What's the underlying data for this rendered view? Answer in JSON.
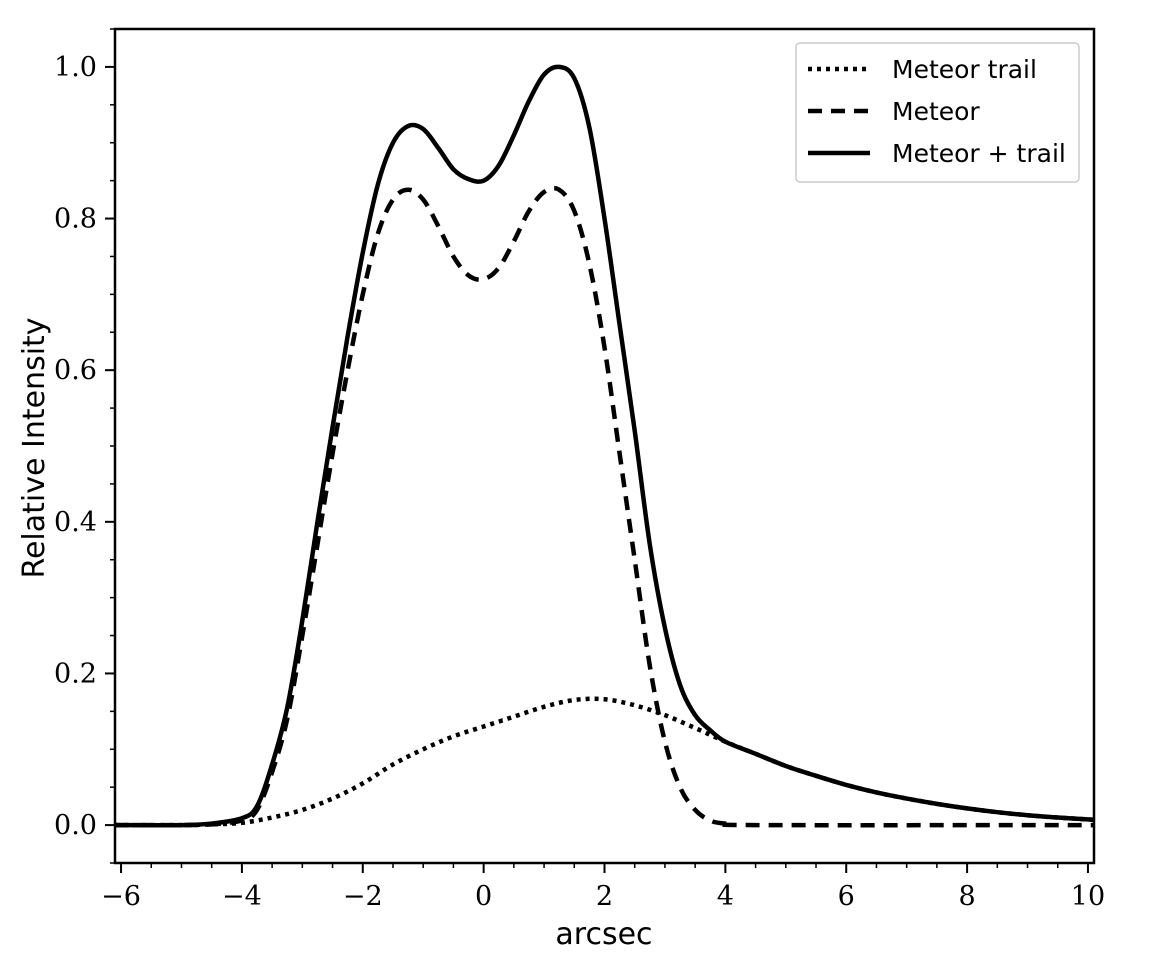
{
  "chart_data": {
    "type": "line",
    "title": "",
    "xlabel": "arcsec",
    "ylabel": "Relative Intensity",
    "xlim": [
      -6.1,
      10.1
    ],
    "ylim": [
      -0.05,
      1.05
    ],
    "x_ticks": [
      -6,
      -4,
      -2,
      0,
      2,
      4,
      6,
      8,
      10
    ],
    "x_tick_labels": [
      "−6",
      "−4",
      "−2",
      "0",
      "2",
      "4",
      "6",
      "8",
      "10"
    ],
    "y_ticks": [
      0.0,
      0.2,
      0.4,
      0.6,
      0.8,
      1.0
    ],
    "y_tick_labels": [
      "0.0",
      "0.2",
      "0.4",
      "0.6",
      "0.8",
      "1.0"
    ],
    "grid": false,
    "legend_position": "top-right",
    "series": [
      {
        "name": "Meteor trail",
        "style": "dotted",
        "color": "#000000",
        "points": [
          [
            -6.1,
            0.0
          ],
          [
            -5,
            0.0
          ],
          [
            -4.5,
            0.001
          ],
          [
            -4,
            0.003
          ],
          [
            -3.5,
            0.01
          ],
          [
            -3,
            0.02
          ],
          [
            -2.5,
            0.035
          ],
          [
            -2,
            0.055
          ],
          [
            -1.5,
            0.08
          ],
          [
            -1,
            0.1
          ],
          [
            -0.5,
            0.117
          ],
          [
            0,
            0.13
          ],
          [
            0.5,
            0.143
          ],
          [
            1,
            0.156
          ],
          [
            1.5,
            0.165
          ],
          [
            2,
            0.166
          ],
          [
            2.5,
            0.158
          ],
          [
            3,
            0.145
          ],
          [
            3.5,
            0.128
          ],
          [
            4,
            0.11
          ],
          [
            4.5,
            0.094
          ],
          [
            5,
            0.078
          ],
          [
            5.5,
            0.065
          ],
          [
            6,
            0.053
          ],
          [
            6.5,
            0.043
          ],
          [
            7,
            0.035
          ],
          [
            7.5,
            0.028
          ],
          [
            8,
            0.022
          ],
          [
            8.5,
            0.017
          ],
          [
            9,
            0.013
          ],
          [
            9.5,
            0.01
          ],
          [
            10.1,
            0.007
          ]
        ]
      },
      {
        "name": "Meteor",
        "style": "dashed",
        "color": "#000000",
        "points": [
          [
            -6.1,
            0.0
          ],
          [
            -5,
            0.0
          ],
          [
            -4.5,
            0.001
          ],
          [
            -4,
            0.006
          ],
          [
            -3.75,
            0.02
          ],
          [
            -3.5,
            0.07
          ],
          [
            -3.25,
            0.14
          ],
          [
            -3,
            0.25
          ],
          [
            -2.75,
            0.37
          ],
          [
            -2.5,
            0.49
          ],
          [
            -2.25,
            0.6
          ],
          [
            -2,
            0.7
          ],
          [
            -1.75,
            0.78
          ],
          [
            -1.5,
            0.825
          ],
          [
            -1.25,
            0.838
          ],
          [
            -1,
            0.825
          ],
          [
            -0.75,
            0.79
          ],
          [
            -0.5,
            0.75
          ],
          [
            -0.25,
            0.725
          ],
          [
            0,
            0.72
          ],
          [
            0.25,
            0.735
          ],
          [
            0.5,
            0.77
          ],
          [
            0.75,
            0.81
          ],
          [
            1,
            0.835
          ],
          [
            1.25,
            0.838
          ],
          [
            1.5,
            0.81
          ],
          [
            1.75,
            0.74
          ],
          [
            2,
            0.63
          ],
          [
            2.25,
            0.49
          ],
          [
            2.5,
            0.35
          ],
          [
            2.75,
            0.21
          ],
          [
            3,
            0.11
          ],
          [
            3.25,
            0.05
          ],
          [
            3.5,
            0.02
          ],
          [
            3.75,
            0.006
          ],
          [
            4,
            0.002
          ],
          [
            4.5,
            0.0
          ],
          [
            10.1,
            0.0
          ]
        ]
      },
      {
        "name": "Meteor + trail",
        "style": "solid",
        "color": "#000000",
        "points": [
          [
            -6.1,
            0.0
          ],
          [
            -5,
            0.0
          ],
          [
            -4.5,
            0.002
          ],
          [
            -4,
            0.009
          ],
          [
            -3.75,
            0.025
          ],
          [
            -3.5,
            0.08
          ],
          [
            -3.25,
            0.155
          ],
          [
            -3,
            0.27
          ],
          [
            -2.75,
            0.4
          ],
          [
            -2.5,
            0.525
          ],
          [
            -2.25,
            0.645
          ],
          [
            -2,
            0.755
          ],
          [
            -1.75,
            0.845
          ],
          [
            -1.5,
            0.9
          ],
          [
            -1.25,
            0.922
          ],
          [
            -1,
            0.918
          ],
          [
            -0.75,
            0.893
          ],
          [
            -0.5,
            0.865
          ],
          [
            -0.25,
            0.852
          ],
          [
            0,
            0.85
          ],
          [
            0.25,
            0.87
          ],
          [
            0.5,
            0.91
          ],
          [
            0.75,
            0.955
          ],
          [
            1,
            0.99
          ],
          [
            1.25,
            1.0
          ],
          [
            1.5,
            0.985
          ],
          [
            1.75,
            0.92
          ],
          [
            2,
            0.8
          ],
          [
            2.25,
            0.66
          ],
          [
            2.5,
            0.52
          ],
          [
            2.75,
            0.37
          ],
          [
            3,
            0.26
          ],
          [
            3.25,
            0.185
          ],
          [
            3.5,
            0.145
          ],
          [
            3.75,
            0.125
          ],
          [
            4,
            0.11
          ],
          [
            4.5,
            0.094
          ],
          [
            5,
            0.078
          ],
          [
            5.5,
            0.065
          ],
          [
            6,
            0.053
          ],
          [
            6.5,
            0.043
          ],
          [
            7,
            0.035
          ],
          [
            7.5,
            0.028
          ],
          [
            8,
            0.022
          ],
          [
            8.5,
            0.017
          ],
          [
            9,
            0.013
          ],
          [
            9.5,
            0.01
          ],
          [
            10.1,
            0.007
          ]
        ]
      }
    ]
  }
}
